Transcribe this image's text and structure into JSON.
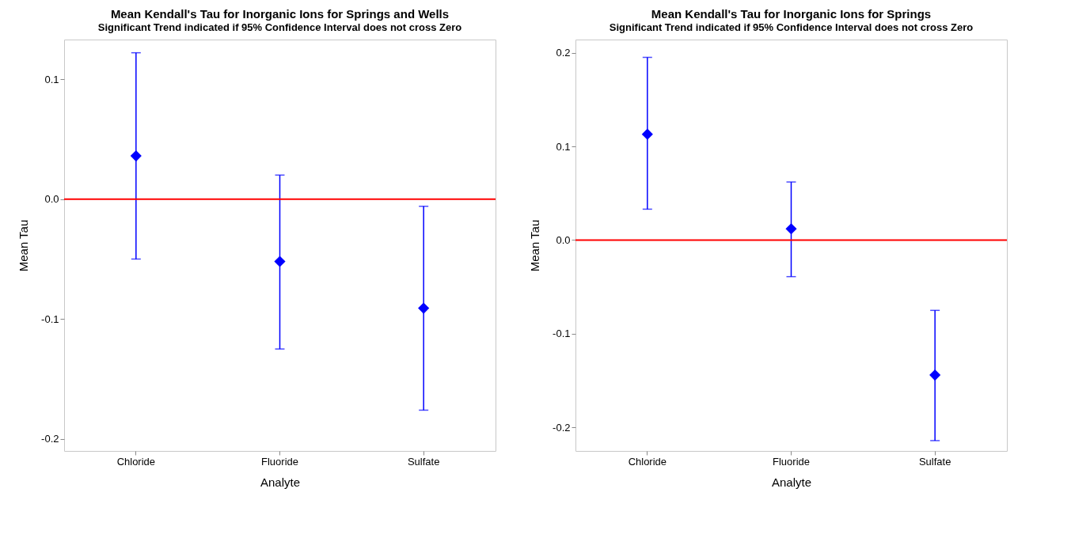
{
  "chart_data": [
    {
      "type": "scatter",
      "title": "Mean Kendall's Tau for Inorganic Ions for Springs and Wells",
      "subtitle": "Significant Trend indicated if 95% Confidence Interval does not cross Zero",
      "xlabel": "Analyte",
      "ylabel": "Mean Tau",
      "categories": [
        "Chloride",
        "Fluoride",
        "Sulfate"
      ],
      "series": [
        {
          "color": "#0000ff",
          "values": [
            0.036,
            -0.052,
            -0.091
          ],
          "errors": [
            [
              -0.05,
              0.122
            ],
            [
              -0.125,
              0.02
            ],
            [
              -0.176,
              -0.006
            ]
          ]
        }
      ],
      "ylim": [
        -0.21,
        0.133
      ],
      "yticks": [
        0.1,
        {
          "value": 0,
          "label": "0.0"
        },
        -0.1,
        -0.2
      ],
      "marker": "diamond",
      "grid": false,
      "ref_lines": [
        {
          "axis": "y",
          "value": 0,
          "color": "#ff0000"
        }
      ]
    },
    {
      "type": "scatter",
      "title": "Mean Kendall's Tau for Inorganic Ions for Springs",
      "subtitle": "Significant Trend indicated if 95% Confidence Interval does not cross Zero",
      "xlabel": "Analyte",
      "ylabel": "Mean Tau",
      "categories": [
        "Chloride",
        "Fluoride",
        "Sulfate"
      ],
      "series": [
        {
          "color": "#0000ff",
          "values": [
            0.113,
            0.012,
            -0.144
          ],
          "errors": [
            [
              0.033,
              0.195
            ],
            [
              -0.039,
              0.062
            ],
            [
              -0.214,
              -0.075
            ]
          ]
        }
      ],
      "ylim": [
        -0.225,
        0.214
      ],
      "yticks": [
        0.2,
        0.1,
        {
          "value": 0,
          "label": "0.0"
        },
        -0.1,
        -0.2
      ],
      "marker": "diamond",
      "grid": false,
      "ref_lines": [
        {
          "axis": "y",
          "value": 0,
          "color": "#ff0000"
        }
      ]
    }
  ]
}
